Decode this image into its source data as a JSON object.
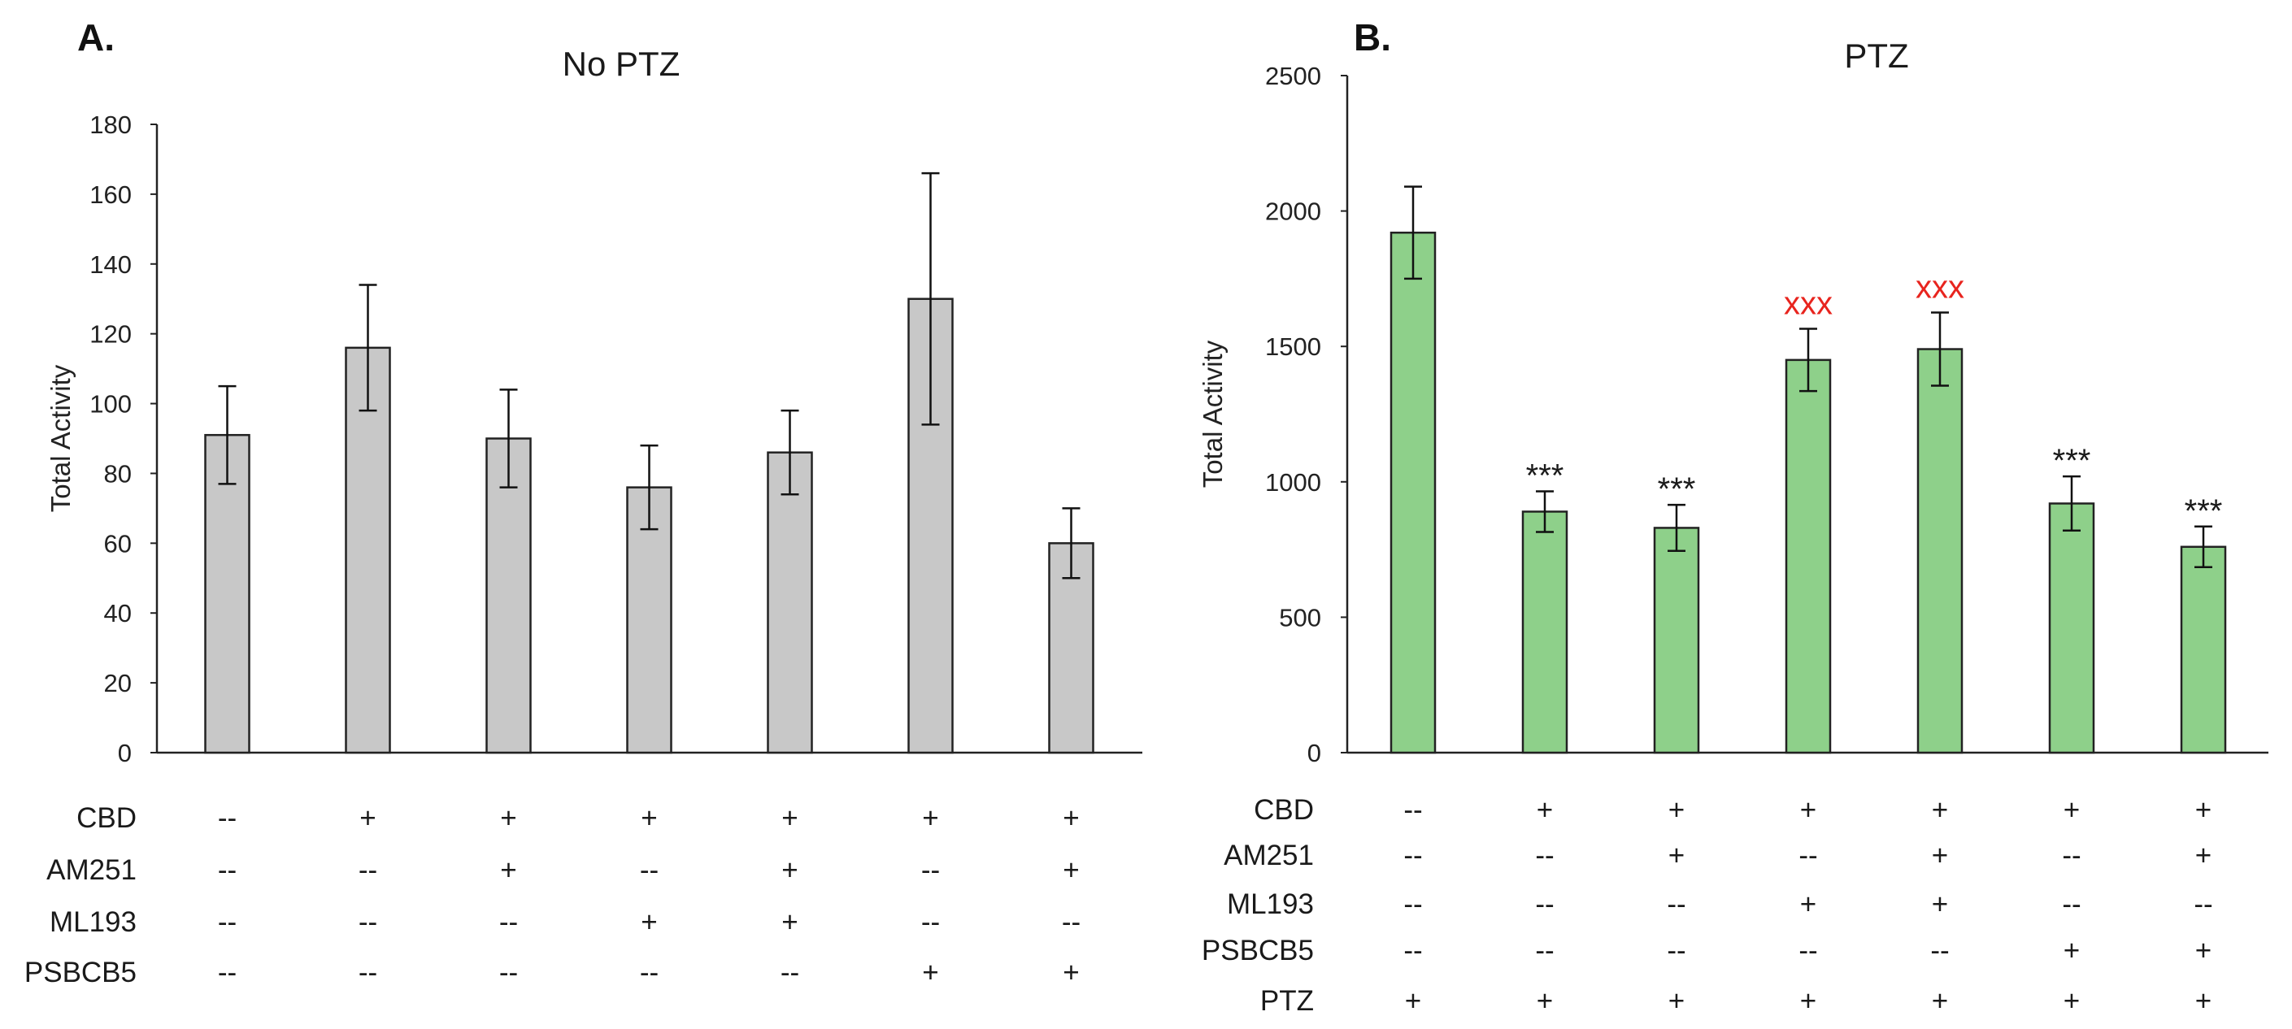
{
  "chart_data": [
    {
      "panel": "A.",
      "type": "bar",
      "title": "No PTZ",
      "ylabel": "Total Activity",
      "ylim": [
        0,
        180
      ],
      "yticks": [
        0,
        20,
        40,
        60,
        80,
        100,
        120,
        140,
        160,
        180
      ],
      "values": [
        91,
        116,
        90,
        76,
        86,
        130,
        60
      ],
      "errors": [
        14,
        18,
        14,
        12,
        12,
        36,
        10
      ],
      "significance": [
        "",
        "",
        "",
        "",
        "",
        "",
        ""
      ],
      "significance_color": "#1a1a1a",
      "bar_color": "#c8c8c8",
      "conditions": [
        {
          "label": "CBD",
          "marks": [
            "--",
            "+",
            "+",
            "+",
            "+",
            "+",
            "+"
          ]
        },
        {
          "label": "AM251",
          "marks": [
            "--",
            "--",
            "+",
            "--",
            "+",
            "--",
            "+"
          ]
        },
        {
          "label": "ML193",
          "marks": [
            "--",
            "--",
            "--",
            "+",
            "+",
            "--",
            "--"
          ]
        },
        {
          "label": "PSBCB5",
          "marks": [
            "--",
            "--",
            "--",
            "--",
            "--",
            "+",
            "+"
          ]
        }
      ]
    },
    {
      "panel": "B.",
      "type": "bar",
      "title": "PTZ",
      "ylabel": "Total Activity",
      "ylim": [
        0,
        2500
      ],
      "yticks": [
        0,
        500,
        1000,
        1500,
        2000,
        2500
      ],
      "values": [
        1920,
        890,
        830,
        1450,
        1490,
        920,
        760
      ],
      "errors": [
        170,
        75,
        85,
        115,
        135,
        100,
        75
      ],
      "significance": [
        "",
        "***",
        "***",
        "xxx",
        "xxx",
        "***",
        "***"
      ],
      "significance_color": "#1a1a1a",
      "significance_alt_color": "#e8241e",
      "bar_color": "#8ed08a",
      "conditions": [
        {
          "label": "CBD",
          "marks": [
            "--",
            "+",
            "+",
            "+",
            "+",
            "+",
            "+"
          ]
        },
        {
          "label": "AM251",
          "marks": [
            "--",
            "--",
            "+",
            "--",
            "+",
            "--",
            "+"
          ]
        },
        {
          "label": "ML193",
          "marks": [
            "--",
            "--",
            "--",
            "+",
            "+",
            "--",
            "--"
          ]
        },
        {
          "label": "PSBCB5",
          "marks": [
            "--",
            "--",
            "--",
            "--",
            "--",
            "+",
            "+"
          ]
        },
        {
          "label": "PTZ",
          "marks": [
            "+",
            "+",
            "+",
            "+",
            "+",
            "+",
            "+"
          ]
        }
      ]
    }
  ]
}
